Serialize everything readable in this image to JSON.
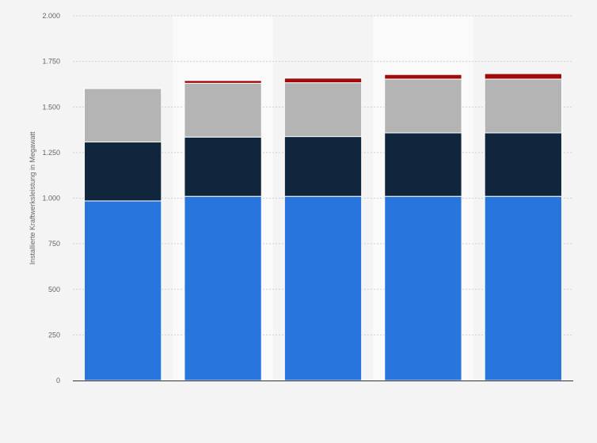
{
  "chart_data": {
    "type": "bar",
    "stacked": true,
    "title": "",
    "xlabel": "",
    "ylabel": "Installierte Kraftwerksleistung in Megawatt",
    "ylim": [
      0,
      2000
    ],
    "yticks": [
      0,
      250,
      500,
      750,
      1000,
      1250,
      1500,
      1750,
      2000
    ],
    "ytick_labels": [
      "0",
      "250",
      "500",
      "750",
      "1.000",
      "1.250",
      "1.500",
      "1.750",
      "2.000"
    ],
    "categories": [
      "",
      "",
      "",
      "",
      ""
    ],
    "grid": true,
    "series": [
      {
        "values": [
          985,
          1010,
          1010,
          1010,
          1010
        ],
        "color": "#2876dd"
      },
      {
        "values": [
          323,
          325,
          328,
          348,
          348
        ],
        "color": "#0f263d"
      },
      {
        "values": [
          293,
          295,
          295,
          295,
          295
        ],
        "color": "#b4b4b4"
      },
      {
        "values": [
          0,
          15,
          25,
          25,
          30
        ],
        "color": "#a10a0a"
      }
    ]
  }
}
